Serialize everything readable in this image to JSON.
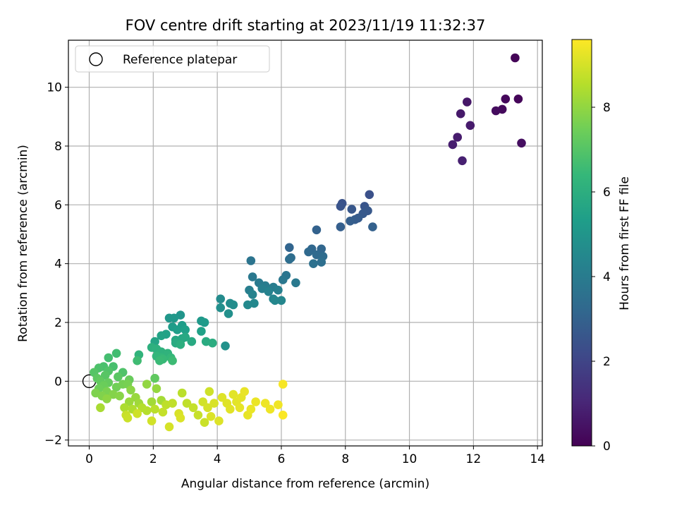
{
  "chart_data": {
    "type": "scatter",
    "title": "FOV centre drift starting at 2023/11/19 11:32:37",
    "xlabel": "Angular distance from reference (arcmin)",
    "ylabel": "Rotation from reference (arcmin)",
    "xlim": [
      -0.65,
      14.15
    ],
    "ylim": [
      -2.2,
      11.6
    ],
    "xticks": [
      0,
      2,
      4,
      6,
      8,
      10,
      12,
      14
    ],
    "yticks": [
      -2,
      0,
      2,
      4,
      6,
      8,
      10
    ],
    "grid": true,
    "legend": {
      "position": "top-left",
      "entries": [
        "Reference platepar"
      ]
    },
    "reference_point": {
      "x": 0,
      "y": 0
    },
    "colorbar": {
      "label": "Hours from first FF file",
      "range": [
        0,
        9.6
      ],
      "ticks": [
        0,
        2,
        4,
        6,
        8
      ],
      "colormap": "viridis",
      "stops": [
        "#440154",
        "#482878",
        "#3e4989",
        "#31688e",
        "#26828e",
        "#1f9e89",
        "#35b779",
        "#6ece58",
        "#b5de2b",
        "#fde725"
      ]
    },
    "points": [
      {
        "x": 13.3,
        "y": 11.0,
        "h": 0.1
      },
      {
        "x": 13.4,
        "y": 9.6,
        "h": 0.15
      },
      {
        "x": 13.0,
        "y": 9.6,
        "h": 0.2
      },
      {
        "x": 12.9,
        "y": 9.25,
        "h": 0.25
      },
      {
        "x": 12.7,
        "y": 9.2,
        "h": 0.3
      },
      {
        "x": 13.5,
        "y": 8.1,
        "h": 0.35
      },
      {
        "x": 11.8,
        "y": 9.5,
        "h": 0.6
      },
      {
        "x": 11.6,
        "y": 9.1,
        "h": 0.65
      },
      {
        "x": 11.9,
        "y": 8.7,
        "h": 0.7
      },
      {
        "x": 11.5,
        "y": 8.3,
        "h": 0.75
      },
      {
        "x": 11.35,
        "y": 8.05,
        "h": 0.8
      },
      {
        "x": 11.65,
        "y": 7.5,
        "h": 0.85
      },
      {
        "x": 8.75,
        "y": 6.35,
        "h": 2.4
      },
      {
        "x": 7.9,
        "y": 6.05,
        "h": 2.45
      },
      {
        "x": 7.85,
        "y": 5.95,
        "h": 2.5
      },
      {
        "x": 8.6,
        "y": 5.95,
        "h": 2.55
      },
      {
        "x": 8.2,
        "y": 5.85,
        "h": 2.6
      },
      {
        "x": 8.7,
        "y": 5.8,
        "h": 2.65
      },
      {
        "x": 8.55,
        "y": 5.7,
        "h": 2.7
      },
      {
        "x": 8.4,
        "y": 5.55,
        "h": 2.75
      },
      {
        "x": 8.3,
        "y": 5.5,
        "h": 2.8
      },
      {
        "x": 8.15,
        "y": 5.45,
        "h": 2.85
      },
      {
        "x": 7.85,
        "y": 5.25,
        "h": 2.9
      },
      {
        "x": 8.85,
        "y": 5.25,
        "h": 2.95
      },
      {
        "x": 7.1,
        "y": 5.15,
        "h": 3.0
      },
      {
        "x": 6.25,
        "y": 4.55,
        "h": 3.1
      },
      {
        "x": 7.25,
        "y": 4.5,
        "h": 3.15
      },
      {
        "x": 6.95,
        "y": 4.5,
        "h": 3.2
      },
      {
        "x": 6.85,
        "y": 4.4,
        "h": 3.25
      },
      {
        "x": 7.1,
        "y": 4.3,
        "h": 3.3
      },
      {
        "x": 7.3,
        "y": 4.25,
        "h": 3.35
      },
      {
        "x": 6.3,
        "y": 4.2,
        "h": 3.4
      },
      {
        "x": 6.25,
        "y": 4.15,
        "h": 3.45
      },
      {
        "x": 7.25,
        "y": 4.05,
        "h": 3.5
      },
      {
        "x": 7.0,
        "y": 4.0,
        "h": 3.55
      },
      {
        "x": 5.05,
        "y": 4.1,
        "h": 3.7
      },
      {
        "x": 6.15,
        "y": 3.6,
        "h": 3.75
      },
      {
        "x": 6.05,
        "y": 3.45,
        "h": 3.8
      },
      {
        "x": 5.1,
        "y": 3.55,
        "h": 3.85
      },
      {
        "x": 6.45,
        "y": 3.35,
        "h": 3.9
      },
      {
        "x": 5.3,
        "y": 3.35,
        "h": 3.95
      },
      {
        "x": 5.5,
        "y": 3.25,
        "h": 4.0
      },
      {
        "x": 5.75,
        "y": 3.2,
        "h": 4.05
      },
      {
        "x": 5.0,
        "y": 3.1,
        "h": 4.1
      },
      {
        "x": 5.4,
        "y": 3.15,
        "h": 4.15
      },
      {
        "x": 5.9,
        "y": 3.1,
        "h": 4.2
      },
      {
        "x": 5.6,
        "y": 3.05,
        "h": 4.25
      },
      {
        "x": 5.1,
        "y": 2.95,
        "h": 4.3
      },
      {
        "x": 5.75,
        "y": 2.8,
        "h": 4.35
      },
      {
        "x": 6.0,
        "y": 2.75,
        "h": 4.4
      },
      {
        "x": 5.8,
        "y": 2.75,
        "h": 4.45
      },
      {
        "x": 5.15,
        "y": 2.65,
        "h": 4.5
      },
      {
        "x": 4.95,
        "y": 2.6,
        "h": 4.55
      },
      {
        "x": 4.1,
        "y": 2.8,
        "h": 4.6
      },
      {
        "x": 4.4,
        "y": 2.65,
        "h": 4.65
      },
      {
        "x": 4.5,
        "y": 2.6,
        "h": 4.7
      },
      {
        "x": 4.1,
        "y": 2.5,
        "h": 4.75
      },
      {
        "x": 4.35,
        "y": 2.3,
        "h": 4.8
      },
      {
        "x": 4.25,
        "y": 1.2,
        "h": 4.85
      },
      {
        "x": 2.85,
        "y": 2.25,
        "h": 5.0
      },
      {
        "x": 2.5,
        "y": 2.15,
        "h": 5.05
      },
      {
        "x": 2.65,
        "y": 2.15,
        "h": 5.1
      },
      {
        "x": 3.5,
        "y": 2.05,
        "h": 5.15
      },
      {
        "x": 3.6,
        "y": 2.0,
        "h": 5.2
      },
      {
        "x": 2.6,
        "y": 1.85,
        "h": 5.25
      },
      {
        "x": 2.9,
        "y": 1.9,
        "h": 5.3
      },
      {
        "x": 2.75,
        "y": 1.75,
        "h": 5.35
      },
      {
        "x": 3.0,
        "y": 1.75,
        "h": 5.4
      },
      {
        "x": 3.5,
        "y": 1.7,
        "h": 5.45
      },
      {
        "x": 2.4,
        "y": 1.6,
        "h": 5.5
      },
      {
        "x": 2.25,
        "y": 1.55,
        "h": 5.55
      },
      {
        "x": 2.05,
        "y": 1.35,
        "h": 5.6
      },
      {
        "x": 2.7,
        "y": 1.4,
        "h": 5.65
      },
      {
        "x": 2.9,
        "y": 1.45,
        "h": 5.7
      },
      {
        "x": 3.0,
        "y": 1.5,
        "h": 5.75
      },
      {
        "x": 3.2,
        "y": 1.35,
        "h": 5.8
      },
      {
        "x": 2.7,
        "y": 1.3,
        "h": 5.85
      },
      {
        "x": 3.65,
        "y": 1.35,
        "h": 5.9
      },
      {
        "x": 3.85,
        "y": 1.3,
        "h": 5.95
      },
      {
        "x": 2.85,
        "y": 1.25,
        "h": 6.0
      },
      {
        "x": 1.95,
        "y": 1.15,
        "h": 6.05
      },
      {
        "x": 2.1,
        "y": 1.1,
        "h": 6.1
      },
      {
        "x": 2.25,
        "y": 1.0,
        "h": 6.15
      },
      {
        "x": 2.45,
        "y": 0.95,
        "h": 6.2
      },
      {
        "x": 1.55,
        "y": 0.9,
        "h": 6.25
      },
      {
        "x": 2.1,
        "y": 0.85,
        "h": 6.3
      },
      {
        "x": 2.25,
        "y": 0.8,
        "h": 6.35
      },
      {
        "x": 2.55,
        "y": 0.8,
        "h": 6.4
      },
      {
        "x": 2.3,
        "y": 0.75,
        "h": 6.45
      },
      {
        "x": 2.2,
        "y": 0.7,
        "h": 6.5
      },
      {
        "x": 2.6,
        "y": 0.7,
        "h": 6.55
      },
      {
        "x": 1.5,
        "y": 0.7,
        "h": 6.6
      },
      {
        "x": 0.85,
        "y": 0.95,
        "h": 6.65
      },
      {
        "x": 0.6,
        "y": 0.8,
        "h": 6.7
      },
      {
        "x": 0.75,
        "y": 0.5,
        "h": 6.75
      },
      {
        "x": 0.45,
        "y": 0.5,
        "h": 6.8
      },
      {
        "x": 0.3,
        "y": 0.45,
        "h": 6.85
      },
      {
        "x": 1.05,
        "y": 0.3,
        "h": 6.9
      },
      {
        "x": 0.6,
        "y": 0.35,
        "h": 6.95
      },
      {
        "x": 0.15,
        "y": 0.3,
        "h": 7.0
      },
      {
        "x": 0.5,
        "y": 0.2,
        "h": 7.05
      },
      {
        "x": 0.9,
        "y": 0.15,
        "h": 7.1
      },
      {
        "x": 0.25,
        "y": 0.1,
        "h": 7.15
      },
      {
        "x": 2.05,
        "y": 0.1,
        "h": 7.2
      },
      {
        "x": 0.35,
        "y": 0.0,
        "h": 7.25
      },
      {
        "x": 0.6,
        "y": -0.05,
        "h": 7.3
      },
      {
        "x": 1.25,
        "y": 0.05,
        "h": 7.35
      },
      {
        "x": 0.45,
        "y": -0.15,
        "h": 7.4
      },
      {
        "x": 0.3,
        "y": -0.25,
        "h": 7.45
      },
      {
        "x": 0.85,
        "y": -0.2,
        "h": 7.5
      },
      {
        "x": 1.05,
        "y": -0.1,
        "h": 7.55
      },
      {
        "x": 1.2,
        "y": -0.1,
        "h": 7.6
      },
      {
        "x": 0.55,
        "y": -0.35,
        "h": 7.65
      },
      {
        "x": 0.2,
        "y": -0.4,
        "h": 7.7
      },
      {
        "x": 0.4,
        "y": -0.5,
        "h": 7.75
      },
      {
        "x": 0.75,
        "y": -0.45,
        "h": 7.8
      },
      {
        "x": 0.95,
        "y": -0.5,
        "h": 7.85
      },
      {
        "x": 1.3,
        "y": -0.3,
        "h": 7.9
      },
      {
        "x": 0.55,
        "y": -0.6,
        "h": 7.95
      },
      {
        "x": 1.8,
        "y": -0.1,
        "h": 8.0
      },
      {
        "x": 2.1,
        "y": -0.25,
        "h": 8.05
      },
      {
        "x": 1.45,
        "y": -0.55,
        "h": 8.1
      },
      {
        "x": 1.25,
        "y": -0.7,
        "h": 8.15
      },
      {
        "x": 1.55,
        "y": -0.75,
        "h": 8.2
      },
      {
        "x": 1.95,
        "y": -0.7,
        "h": 8.25
      },
      {
        "x": 2.25,
        "y": -0.65,
        "h": 8.3
      },
      {
        "x": 0.35,
        "y": -0.9,
        "h": 8.35
      },
      {
        "x": 1.1,
        "y": -0.9,
        "h": 8.4
      },
      {
        "x": 1.35,
        "y": -0.95,
        "h": 8.45
      },
      {
        "x": 1.65,
        "y": -0.9,
        "h": 8.5
      },
      {
        "x": 1.8,
        "y": -1.0,
        "h": 8.55
      },
      {
        "x": 2.05,
        "y": -0.95,
        "h": 8.6
      },
      {
        "x": 2.4,
        "y": -0.8,
        "h": 8.65
      },
      {
        "x": 2.6,
        "y": -0.75,
        "h": 8.7
      },
      {
        "x": 2.3,
        "y": -1.05,
        "h": 8.75
      },
      {
        "x": 1.15,
        "y": -1.15,
        "h": 8.8
      },
      {
        "x": 1.2,
        "y": -1.25,
        "h": 8.85
      },
      {
        "x": 1.5,
        "y": -1.1,
        "h": 8.9
      },
      {
        "x": 1.95,
        "y": -1.35,
        "h": 8.95
      },
      {
        "x": 2.5,
        "y": -1.55,
        "h": 9.0
      },
      {
        "x": 2.8,
        "y": -1.1,
        "h": 9.05
      },
      {
        "x": 2.85,
        "y": -1.25,
        "h": 9.1
      },
      {
        "x": 2.9,
        "y": -0.4,
        "h": 8.6
      },
      {
        "x": 3.05,
        "y": -0.75,
        "h": 8.7
      },
      {
        "x": 3.25,
        "y": -0.9,
        "h": 8.75
      },
      {
        "x": 3.4,
        "y": -1.15,
        "h": 8.8
      },
      {
        "x": 3.6,
        "y": -1.4,
        "h": 8.85
      },
      {
        "x": 3.75,
        "y": -0.35,
        "h": 8.9
      },
      {
        "x": 3.55,
        "y": -0.7,
        "h": 8.95
      },
      {
        "x": 3.7,
        "y": -0.9,
        "h": 9.0
      },
      {
        "x": 3.9,
        "y": -0.75,
        "h": 9.05
      },
      {
        "x": 3.8,
        "y": -1.2,
        "h": 9.1
      },
      {
        "x": 4.05,
        "y": -1.35,
        "h": 9.12
      },
      {
        "x": 4.15,
        "y": -0.55,
        "h": 9.14
      },
      {
        "x": 4.3,
        "y": -0.75,
        "h": 9.16
      },
      {
        "x": 4.4,
        "y": -0.95,
        "h": 9.18
      },
      {
        "x": 4.5,
        "y": -0.45,
        "h": 9.2
      },
      {
        "x": 4.6,
        "y": -0.7,
        "h": 9.22
      },
      {
        "x": 4.75,
        "y": -0.55,
        "h": 9.24
      },
      {
        "x": 4.7,
        "y": -0.9,
        "h": 9.26
      },
      {
        "x": 4.95,
        "y": -1.15,
        "h": 9.28
      },
      {
        "x": 4.85,
        "y": -0.35,
        "h": 9.3
      },
      {
        "x": 5.05,
        "y": -0.95,
        "h": 9.32
      },
      {
        "x": 5.2,
        "y": -0.7,
        "h": 9.34
      },
      {
        "x": 5.5,
        "y": -0.75,
        "h": 9.36
      },
      {
        "x": 5.65,
        "y": -0.95,
        "h": 9.38
      },
      {
        "x": 5.9,
        "y": -0.8,
        "h": 9.4
      },
      {
        "x": 6.05,
        "y": -0.1,
        "h": 9.5
      },
      {
        "x": 6.05,
        "y": -1.15,
        "h": 9.55
      }
    ]
  }
}
